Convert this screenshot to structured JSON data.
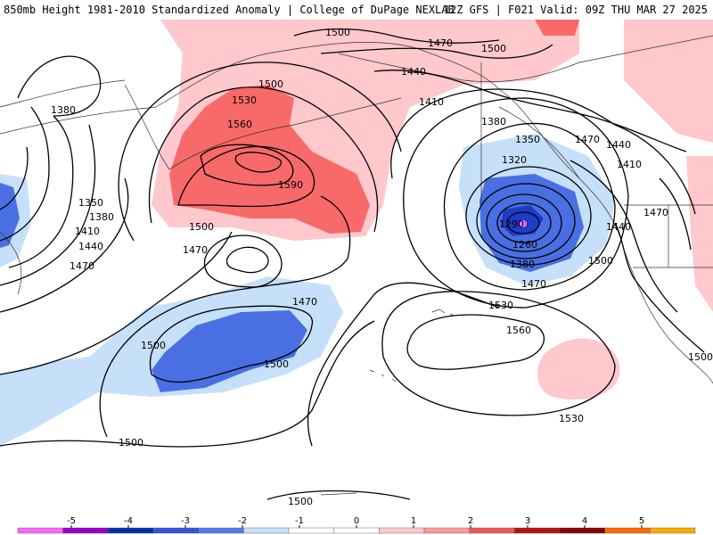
{
  "header": {
    "title_left": "850mb Height 1981-2010 Standardized Anomaly | College of DuPage NEXLAB",
    "title_right": "12Z GFS | F021 Valid: 09Z THU MAR 27 2025"
  },
  "contour_labels": [
    "1500",
    "1470",
    "1440",
    "1410",
    "1380",
    "1350",
    "1320",
    "1290",
    "1260",
    "1380",
    "1470",
    "1500",
    "1530",
    "1560",
    "1530",
    "1500",
    "1560",
    "1590",
    "1500",
    "1470",
    "1500",
    "1470",
    "1500",
    "1530",
    "1500",
    "1350",
    "1380",
    "1410",
    "1440",
    "1470",
    "1380",
    "1470",
    "1440",
    "1410",
    "1470",
    "1440",
    "1500",
    "1500",
    "1500"
  ],
  "colorbar": {
    "ticks": [
      "-5",
      "-4",
      "-3",
      "-2",
      "-1",
      "0",
      "1",
      "2",
      "3",
      "4",
      "5"
    ],
    "colors": [
      "#ff66ff",
      "#9900cc",
      "#0033aa",
      "#3355dd",
      "#5577ee",
      "#c6e0f9",
      "#ffffff",
      "#ffffff",
      "#ffc8cc",
      "#ff9999",
      "#ee5555",
      "#bb1111",
      "#8b0000",
      "#ff6600",
      "#ffaa00"
    ]
  },
  "anomaly_colors": {
    "pos1": "#ffc8cc",
    "pos2": "#f86a6a",
    "neg1": "#c6e0f9",
    "neg2": "#4a6fe3",
    "neg3": "#1d3cc8",
    "neg5": "#ff66ff"
  }
}
